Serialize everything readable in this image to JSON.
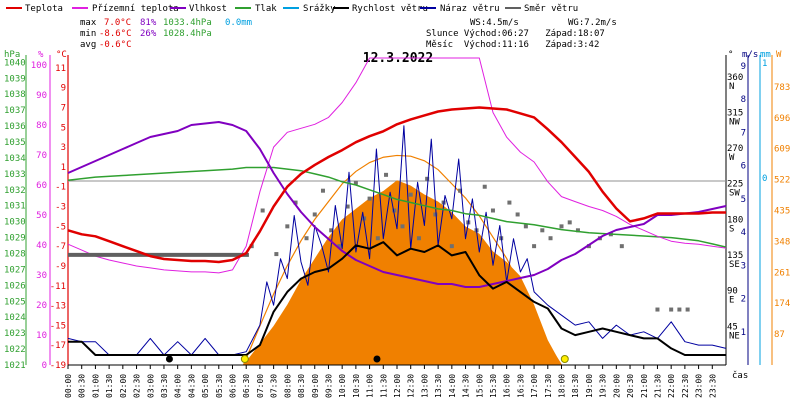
{
  "chart_data": {
    "type": "line",
    "title": "12.3.2022",
    "legend": {
      "placement": "top",
      "entries": [
        {
          "key": "temp",
          "label": "Teplota",
          "color": "#e00000"
        },
        {
          "key": "dew",
          "label": "Přízemní teplota",
          "color": "#e020e0"
        },
        {
          "key": "hum",
          "label": "Vlhkost",
          "color": "#8000c0"
        },
        {
          "key": "press",
          "label": "Tlak",
          "color": "#30a030"
        },
        {
          "key": "rain",
          "label": "Srážky",
          "color": "#00a0e0"
        },
        {
          "key": "wind",
          "label": "Rychlost větru",
          "color": "#000000"
        },
        {
          "key": "gust",
          "label": "Náraz větru",
          "color": "#0000a0"
        },
        {
          "key": "wdir",
          "label": "Směr větru",
          "color": "#606060"
        }
      ]
    },
    "stats": {
      "max_label": "max",
      "max_temp": "7.0°C",
      "max_hum": "81%",
      "max_press": "1033.4hPa",
      "max_rain": "0.0mm",
      "min_label": "min",
      "min_temp": "-8.6°C",
      "min_hum": "26%",
      "min_press": "1028.4hPa",
      "avg_label": "avg",
      "avg_temp": "-0.6°C",
      "ws": "WS:4.5m/s",
      "wg": "WG:7.2m/s",
      "sun": "Slunce Východ:06:27   Západ:18:07",
      "moon": "Měsíc  Východ:11:16   Západ:3:42"
    },
    "axes": {
      "hpa_unit": "hPa",
      "hpa_ticks": [
        "1040",
        "1039",
        "1038",
        "1037",
        "1036",
        "1035",
        "1034",
        "1033",
        "1032",
        "1031",
        "1030",
        "1029",
        "1028",
        "1027",
        "1026",
        "1025",
        "1024",
        "1023",
        "1022",
        "1021"
      ],
      "pct_unit": "%",
      "pct_ticks": [
        "100",
        "90",
        "80",
        "70",
        "60",
        "50",
        "40",
        "30",
        "20",
        "10",
        "0"
      ],
      "temp_unit": "°C",
      "temp_ticks": [
        "11",
        "9",
        "7",
        "5",
        "3",
        "1",
        "-1",
        "-3",
        "-5",
        "-7",
        "-9",
        "-11",
        "-13",
        "-15",
        "-17",
        "-19"
      ],
      "deg_unit": "°",
      "dir_ticks": [
        {
          "deg": "360",
          "label": "N"
        },
        {
          "deg": "315",
          "label": "NW"
        },
        {
          "deg": "270",
          "label": "W"
        },
        {
          "deg": "225",
          "label": "SW"
        },
        {
          "deg": "180",
          "label": "S"
        },
        {
          "deg": "135",
          "label": "SE"
        },
        {
          "deg": "90",
          "label": "E"
        },
        {
          "deg": "45",
          "label": "NE"
        }
      ],
      "ms_unit": "m/s",
      "ms_ticks": [
        "9",
        "8",
        "7",
        "6",
        "5",
        "4",
        "3",
        "2",
        "1"
      ],
      "mm_unit": "mm",
      "mm_ticks": [
        "1",
        "0"
      ],
      "w_unit": "W",
      "w_ticks": [
        "783",
        "696",
        "609",
        "522",
        "435",
        "348",
        "261",
        "174",
        "87"
      ],
      "x_label": "čas",
      "x_ticks": [
        "00:00",
        "00:30",
        "01:00",
        "01:30",
        "02:00",
        "02:30",
        "03:00",
        "03:30",
        "04:00",
        "04:30",
        "05:00",
        "05:30",
        "06:00",
        "06:30",
        "07:00",
        "07:30",
        "08:00",
        "08:30",
        "09:00",
        "09:30",
        "10:00",
        "10:30",
        "11:00",
        "11:30",
        "12:00",
        "12:30",
        "13:00",
        "13:30",
        "14:00",
        "14:30",
        "15:00",
        "15:30",
        "16:00",
        "16:30",
        "17:00",
        "17:30",
        "18:00",
        "18:30",
        "19:00",
        "19:30",
        "20:00",
        "20:30",
        "21:00",
        "21:30",
        "22:00",
        "22:30",
        "23:00",
        "23:30"
      ]
    },
    "ranges": {
      "temp_c": [
        -19,
        12
      ],
      "humidity_pct": [
        0,
        100
      ],
      "pressure_hpa": [
        1021,
        1040
      ],
      "wind_ms": [
        0,
        9
      ],
      "direction_deg": [
        0,
        360
      ],
      "solar_w": [
        0,
        870
      ],
      "x_hours": [
        0,
        24
      ]
    },
    "grid": false,
    "series": [
      {
        "key": "temp",
        "color": "#e00000",
        "width": 2.5,
        "x": [
          0,
          0.5,
          1,
          1.5,
          2,
          2.5,
          3,
          3.5,
          4,
          4.5,
          5,
          5.5,
          6,
          6.5,
          7,
          7.5,
          8,
          8.5,
          9,
          9.5,
          10,
          10.5,
          11,
          11.5,
          12,
          12.5,
          13,
          13.5,
          14,
          14.5,
          15,
          15.5,
          16,
          16.5,
          17,
          17.5,
          18,
          18.5,
          19,
          19.5,
          20,
          20.5,
          21,
          21.5,
          22,
          22.5,
          23,
          23.5,
          24
        ],
        "y": [
          -5.4,
          -5.8,
          -6,
          -6.5,
          -7,
          -7.5,
          -8,
          -8.3,
          -8.4,
          -8.5,
          -8.5,
          -8.6,
          -8.4,
          -7.7,
          -5.5,
          -3,
          -1,
          0.3,
          1.2,
          2,
          2.7,
          3.5,
          4.1,
          4.6,
          5.3,
          5.8,
          6.2,
          6.6,
          6.8,
          6.9,
          7,
          6.9,
          6.8,
          6.4,
          6,
          4.8,
          3.5,
          2,
          0.5,
          -1.5,
          -3.2,
          -4.5,
          -4.2,
          -3.7,
          -3.7,
          -3.7,
          -3.7,
          -3.6,
          -3.6
        ]
      },
      {
        "key": "dew",
        "color": "#e020e0",
        "width": 1,
        "x": [
          0,
          0.5,
          1,
          1.5,
          2,
          2.5,
          3,
          3.5,
          4,
          4.5,
          5,
          5.5,
          6,
          6.5,
          7,
          7.5,
          8,
          8.5,
          9,
          9.5,
          10,
          10.5,
          11,
          11.5,
          12,
          12.5,
          13,
          13.5,
          14,
          14.5,
          15,
          15.5,
          16,
          16.5,
          17,
          17.5,
          18,
          18.5,
          19,
          19.5,
          20,
          20.5,
          21,
          21.5,
          22,
          22.5,
          23,
          23.5,
          24
        ],
        "y": [
          -6.8,
          -7.4,
          -8,
          -8.4,
          -8.7,
          -9,
          -9.2,
          -9.4,
          -9.5,
          -9.6,
          -9.6,
          -9.7,
          -9.4,
          -7,
          -1.5,
          3,
          4.5,
          4.9,
          5.3,
          6,
          7.5,
          9.5,
          12,
          12,
          12,
          12,
          12,
          12,
          12,
          12,
          12,
          6.5,
          4,
          2.5,
          1.5,
          -0.5,
          -2,
          -2.5,
          -3,
          -3.4,
          -4,
          -4.8,
          -5.4,
          -6,
          -6.5,
          -6.7,
          -6.8,
          -7,
          -7.2
        ]
      },
      {
        "key": "hum",
        "color": "#8000c0",
        "width": 2,
        "x": [
          0,
          0.5,
          1,
          1.5,
          2,
          2.5,
          3,
          3.5,
          4,
          4.5,
          5,
          5.5,
          6,
          6.5,
          7,
          7.5,
          8,
          8.5,
          9,
          9.5,
          10,
          10.5,
          11,
          11.5,
          12,
          12.5,
          13,
          13.5,
          14,
          14.5,
          15,
          15.5,
          16,
          16.5,
          17,
          17.5,
          18,
          18.5,
          19,
          19.5,
          20,
          20.5,
          21,
          21.5,
          22,
          22.5,
          23,
          23.5,
          24
        ],
        "y": [
          64,
          66,
          68,
          70,
          72,
          74,
          76,
          77,
          78,
          80,
          80.5,
          81,
          80,
          78,
          72,
          64,
          57,
          51,
          46,
          42,
          38,
          35,
          33,
          31,
          30,
          29,
          28,
          27,
          27,
          26,
          26,
          27,
          28,
          29,
          30,
          32,
          35,
          37,
          40,
          43,
          45,
          46,
          47,
          50,
          50,
          50.5,
          51,
          52,
          53
        ]
      },
      {
        "key": "press",
        "color": "#30a030",
        "width": 1.5,
        "x": [
          0,
          1,
          2,
          3,
          4,
          5,
          6,
          6.5,
          7,
          7.5,
          8,
          8.5,
          9,
          9.5,
          10,
          10.5,
          11,
          11.5,
          12,
          12.5,
          13,
          13.5,
          14,
          14.5,
          15,
          15.5,
          16,
          17,
          18,
          19,
          20,
          21,
          22,
          23,
          23.5,
          24
        ],
        "y": [
          1032.6,
          1032.8,
          1032.9,
          1033,
          1033.1,
          1033.2,
          1033.3,
          1033.4,
          1033.4,
          1033.4,
          1033.3,
          1033.2,
          1033.0,
          1032.8,
          1032.5,
          1032.3,
          1032.0,
          1031.7,
          1031.4,
          1031.2,
          1031.0,
          1030.8,
          1030.7,
          1030.5,
          1030.4,
          1030.2,
          1030.0,
          1029.8,
          1029.5,
          1029.3,
          1029.2,
          1029.1,
          1029.0,
          1028.8,
          1028.6,
          1028.4
        ]
      },
      {
        "key": "wind",
        "color": "#000000",
        "width": 2,
        "x": [
          0,
          0.5,
          1,
          1.5,
          2,
          2.5,
          3,
          3.5,
          4,
          4.5,
          5,
          5.5,
          6,
          6.5,
          7,
          7.5,
          8,
          8.5,
          9,
          9.5,
          10,
          10.5,
          11,
          11.5,
          12,
          12.5,
          13,
          13.5,
          14,
          14.5,
          15,
          15.5,
          16,
          16.5,
          17,
          17.5,
          18,
          18.5,
          19,
          19.5,
          20,
          20.5,
          21,
          21.5,
          22,
          22.5,
          23,
          23.5,
          24
        ],
        "y": [
          0.7,
          0.7,
          0.3,
          0.3,
          0.3,
          0.3,
          0.3,
          0.3,
          0.3,
          0.3,
          0.3,
          0.3,
          0.3,
          0.3,
          0.6,
          1.6,
          2.2,
          2.6,
          2.8,
          2.9,
          3.2,
          3.6,
          3.5,
          3.7,
          3.3,
          3.5,
          3.4,
          3.6,
          3.3,
          3.4,
          2.7,
          2.3,
          2.5,
          2.2,
          1.9,
          1.7,
          1.1,
          0.9,
          1.0,
          1.1,
          1.0,
          0.9,
          0.8,
          0.8,
          0.5,
          0.3,
          0.3,
          0.3,
          0.3
        ]
      },
      {
        "key": "gust",
        "color": "#0000a0",
        "width": 1,
        "x": [
          0,
          0.5,
          1,
          1.5,
          2,
          2.5,
          3,
          3.5,
          4,
          4.5,
          5,
          5.5,
          6,
          6.5,
          7,
          7.25,
          7.5,
          7.75,
          8,
          8.25,
          8.5,
          8.75,
          9,
          9.25,
          9.5,
          9.75,
          10,
          10.25,
          10.5,
          10.75,
          11,
          11.25,
          11.5,
          11.75,
          12,
          12.25,
          12.5,
          12.75,
          13,
          13.25,
          13.5,
          13.75,
          14,
          14.25,
          14.5,
          14.75,
          15,
          15.25,
          15.5,
          15.75,
          16,
          16.25,
          16.5,
          16.75,
          17,
          17.5,
          18,
          18.5,
          19,
          19.5,
          20,
          20.5,
          21,
          21.5,
          22,
          22.5,
          23,
          23.5,
          24
        ],
        "y": [
          0.8,
          0.7,
          0.7,
          0.3,
          0.3,
          0.3,
          0.8,
          0.3,
          0.7,
          0.3,
          0.8,
          0.3,
          0.3,
          0.4,
          1.2,
          2.5,
          1.8,
          3.2,
          2.6,
          4.5,
          3.1,
          2.4,
          4.2,
          3.6,
          2.8,
          4.8,
          3.5,
          5.8,
          3.4,
          4.6,
          3.2,
          6.5,
          3.8,
          5.2,
          4.1,
          7.2,
          3.5,
          5.5,
          4.2,
          6.8,
          3.6,
          5.1,
          4.4,
          6.2,
          3.8,
          5.0,
          3.4,
          4.6,
          3.0,
          4.2,
          2.5,
          3.8,
          2.8,
          3.2,
          2.2,
          1.8,
          1.5,
          1.2,
          1.3,
          0.8,
          1.2,
          0.9,
          1.0,
          0.8,
          1.3,
          0.7,
          0.6,
          0.6,
          0.5
        ]
      },
      {
        "key": "wdir",
        "color": "#606060",
        "width": 4,
        "x": [
          0,
          1,
          2,
          3,
          4,
          5,
          6,
          6.6
        ],
        "y": [
          139,
          139,
          139,
          139,
          139,
          139,
          139,
          139
        ]
      }
    ],
    "wind_direction_points": {
      "color": "#707070",
      "x": [
        6.7,
        7.1,
        7.6,
        8.0,
        8.3,
        8.7,
        9.0,
        9.3,
        9.6,
        9.9,
        10.2,
        10.5,
        10.8,
        11.0,
        11.3,
        11.6,
        11.9,
        12.2,
        12.5,
        12.8,
        13.1,
        13.4,
        13.7,
        14.0,
        14.3,
        14.6,
        14.9,
        15.2,
        15.5,
        15.8,
        16.1,
        16.4,
        16.7,
        17.0,
        17.3,
        17.6,
        18.0,
        18.3,
        18.6,
        19.0,
        19.4,
        19.8,
        20.2,
        21.5,
        22.0,
        22.3,
        22.6
      ],
      "y": [
        150,
        195,
        140,
        175,
        205,
        160,
        190,
        220,
        170,
        150,
        200,
        230,
        185,
        210,
        160,
        240,
        195,
        175,
        215,
        160,
        235,
        190,
        205,
        150,
        220,
        180,
        170,
        225,
        195,
        160,
        205,
        190,
        175,
        150,
        170,
        160,
        175,
        180,
        170,
        150,
        160,
        165,
        150,
        70,
        70,
        70,
        70
      ]
    },
    "solar_radiation": {
      "color": "#f08000",
      "x": [
        6.4,
        7,
        7.5,
        8,
        8.5,
        9,
        9.5,
        10,
        10.5,
        11,
        11.5,
        12,
        12.5,
        13,
        13.5,
        14,
        14.5,
        15,
        15.5,
        16,
        16.5,
        17,
        17.5,
        18
      ],
      "y": [
        0,
        60,
        110,
        170,
        240,
        300,
        360,
        410,
        440,
        470,
        490,
        520,
        505,
        480,
        460,
        430,
        390,
        370,
        320,
        290,
        250,
        170,
        70,
        0
      ],
      "theoretical": [
        0,
        110,
        200,
        280,
        350,
        410,
        460,
        510,
        545,
        570,
        585,
        590,
        588,
        575,
        550,
        510,
        470,
        420,
        360,
        300,
        220,
        140,
        60,
        0
      ]
    },
    "markers": {
      "sunrise_x": 6.45,
      "sunset_x": 18.12,
      "moonset_x": 3.7,
      "moonrise_x": 11.27
    }
  }
}
